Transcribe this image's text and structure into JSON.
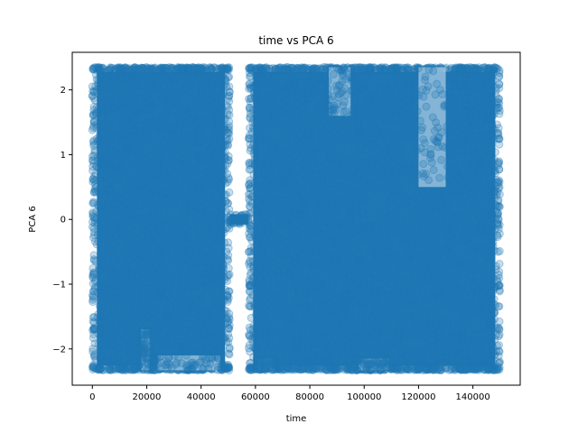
{
  "chart_data": {
    "type": "scatter",
    "title": "time vs PCA 6",
    "xlabel": "time",
    "ylabel": "PCA 6",
    "xlim": [
      -7400,
      157400
    ],
    "ylim": [
      -2.56,
      2.58
    ],
    "xticks": [
      0,
      20000,
      40000,
      60000,
      80000,
      100000,
      120000,
      140000
    ],
    "xtick_labels": [
      "0",
      "20000",
      "40000",
      "60000",
      "80000",
      "100000",
      "120000",
      "140000"
    ],
    "yticks": [
      -2,
      -1,
      0,
      1,
      2
    ],
    "ytick_labels": [
      "−2",
      "−1",
      "0",
      "1",
      "2"
    ],
    "grid": false,
    "marker_color": "#1f77b4",
    "marker_alpha": 0.25,
    "segments": [
      {
        "x_range": [
          0,
          50500
        ],
        "y_range": [
          -2.33,
          2.35
        ]
      },
      {
        "x_range": [
          50500,
          57500
        ],
        "y_range": [
          -0.08,
          0.08
        ]
      },
      {
        "x_range": [
          57500,
          149900
        ],
        "y_range": [
          -2.33,
          2.35
        ]
      }
    ],
    "sparse_regions": [
      {
        "x_range": [
          17000,
          22000
        ],
        "y_range": [
          -2.33,
          -1.7
        ]
      },
      {
        "x_range": [
          23000,
          48000
        ],
        "y_range": [
          -2.33,
          -2.1
        ]
      },
      {
        "x_range": [
          86000,
          96000
        ],
        "y_range": [
          1.6,
          2.35
        ]
      },
      {
        "x_range": [
          119000,
          131000
        ],
        "y_range": [
          0.5,
          2.35
        ]
      },
      {
        "x_range": [
          60000,
          68000
        ],
        "y_range": [
          -2.33,
          -2.15
        ]
      },
      {
        "x_range": [
          97000,
          110000
        ],
        "y_range": [
          -2.33,
          -2.15
        ]
      }
    ]
  }
}
